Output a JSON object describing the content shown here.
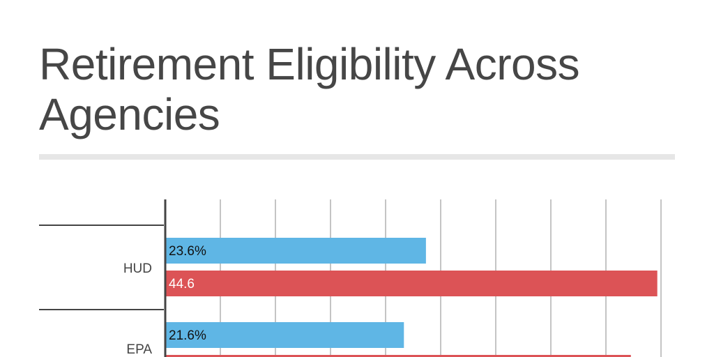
{
  "chart_data": {
    "type": "bar",
    "orientation": "horizontal",
    "title": "Retirement Eligibility Across Agencies",
    "categories": [
      "HUD",
      "EPA"
    ],
    "series": [
      {
        "values": [
          23.6,
          21.6
        ],
        "labels": [
          "23.6%",
          "21.6%"
        ],
        "color": "#5fb6e5"
      },
      {
        "values": [
          44.6,
          42.2
        ],
        "labels": [
          "44.6",
          ""
        ],
        "color": "#dc5356"
      }
    ],
    "xlim": [
      0,
      45
    ],
    "grid_step": 5,
    "grid": true
  }
}
